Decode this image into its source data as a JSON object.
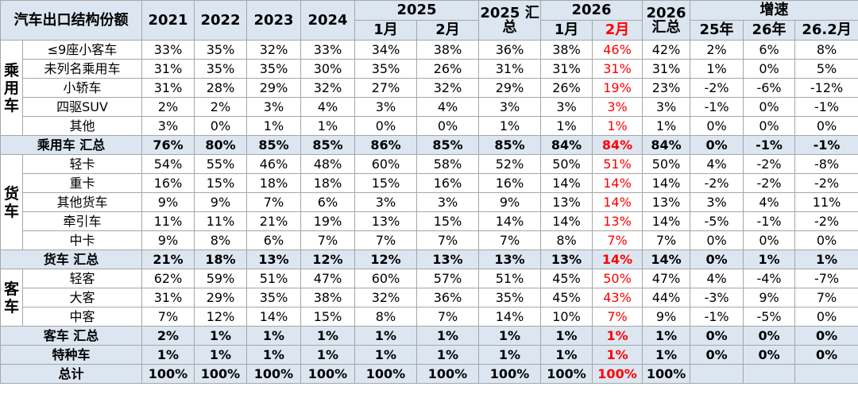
{
  "header": {
    "title": "汽车出口结构份额",
    "row1": [
      "2021",
      "2022",
      "2023",
      "2024",
      "2025",
      "2025 汇总",
      "2026",
      "2026 汇总",
      "增速"
    ],
    "row2": [
      "1月",
      "2月",
      "1月",
      "2月",
      "25年",
      "26年",
      "26.2月"
    ]
  },
  "groups": [
    {
      "label": "乘用车",
      "rows": [
        {
          "name": "≤9座小客车",
          "cells": [
            "33%",
            "35%",
            "32%",
            "33%",
            "34%",
            "38%",
            "36%",
            "38%",
            "46%",
            "42%",
            "2%",
            "6%",
            "8%"
          ]
        },
        {
          "name": "未列名乘用车",
          "cells": [
            "31%",
            "35%",
            "35%",
            "30%",
            "35%",
            "26%",
            "31%",
            "31%",
            "31%",
            "31%",
            "1%",
            "0%",
            "5%"
          ]
        },
        {
          "name": "小轿车",
          "cells": [
            "31%",
            "28%",
            "29%",
            "32%",
            "27%",
            "32%",
            "29%",
            "26%",
            "19%",
            "23%",
            "-2%",
            "-6%",
            "-12%"
          ]
        },
        {
          "name": "四驱SUV",
          "cells": [
            "2%",
            "2%",
            "3%",
            "4%",
            "3%",
            "4%",
            "3%",
            "3%",
            "3%",
            "3%",
            "-1%",
            "0%",
            "-1%"
          ]
        },
        {
          "name": "其他",
          "cells": [
            "3%",
            "0%",
            "1%",
            "1%",
            "0%",
            "0%",
            "1%",
            "1%",
            "1%",
            "1%",
            "0%",
            "0%",
            "0%"
          ]
        }
      ],
      "total": {
        "name": "乘用车 汇总",
        "cells": [
          "76%",
          "80%",
          "85%",
          "85%",
          "86%",
          "85%",
          "85%",
          "84%",
          "84%",
          "84%",
          "0%",
          "-1%",
          "-1%"
        ]
      }
    },
    {
      "label": "货车",
      "rows": [
        {
          "name": "轻卡",
          "cells": [
            "54%",
            "55%",
            "46%",
            "48%",
            "60%",
            "58%",
            "52%",
            "50%",
            "51%",
            "50%",
            "4%",
            "-2%",
            "-8%"
          ]
        },
        {
          "name": "重卡",
          "cells": [
            "16%",
            "15%",
            "18%",
            "18%",
            "15%",
            "16%",
            "16%",
            "14%",
            "14%",
            "14%",
            "-2%",
            "-2%",
            "-2%"
          ]
        },
        {
          "name": "其他货车",
          "cells": [
            "9%",
            "9%",
            "7%",
            "6%",
            "3%",
            "3%",
            "9%",
            "13%",
            "14%",
            "13%",
            "3%",
            "4%",
            "11%"
          ]
        },
        {
          "name": "牵引车",
          "cells": [
            "11%",
            "11%",
            "21%",
            "19%",
            "13%",
            "15%",
            "14%",
            "14%",
            "13%",
            "14%",
            "-5%",
            "-1%",
            "-2%"
          ]
        },
        {
          "name": "中卡",
          "cells": [
            "9%",
            "8%",
            "6%",
            "7%",
            "7%",
            "7%",
            "7%",
            "8%",
            "7%",
            "7%",
            "0%",
            "0%",
            "0%"
          ]
        }
      ],
      "total": {
        "name": "货车 汇总",
        "cells": [
          "21%",
          "18%",
          "13%",
          "12%",
          "12%",
          "13%",
          "13%",
          "13%",
          "14%",
          "14%",
          "0%",
          "1%",
          "1%"
        ]
      }
    },
    {
      "label": "客车",
      "rows": [
        {
          "name": "轻客",
          "cells": [
            "62%",
            "59%",
            "51%",
            "47%",
            "60%",
            "57%",
            "51%",
            "45%",
            "50%",
            "47%",
            "4%",
            "-4%",
            "-7%"
          ]
        },
        {
          "name": "大客",
          "cells": [
            "31%",
            "29%",
            "35%",
            "38%",
            "32%",
            "36%",
            "35%",
            "45%",
            "43%",
            "44%",
            "-3%",
            "9%",
            "7%"
          ]
        },
        {
          "name": "中客",
          "cells": [
            "7%",
            "12%",
            "14%",
            "15%",
            "8%",
            "7%",
            "14%",
            "10%",
            "7%",
            "9%",
            "-1%",
            "-5%",
            "0%"
          ]
        }
      ],
      "total": {
        "name": "客车 汇总",
        "cells": [
          "2%",
          "1%",
          "1%",
          "1%",
          "1%",
          "1%",
          "1%",
          "1%",
          "1%",
          "1%",
          "0%",
          "0%",
          "0%"
        ]
      }
    }
  ],
  "special": {
    "name": "特种车",
    "cells": [
      "1%",
      "1%",
      "1%",
      "1%",
      "1%",
      "1%",
      "1%",
      "1%",
      "1%",
      "1%",
      "0%",
      "0%",
      "0%"
    ]
  },
  "grand_total": {
    "name": "总计",
    "cells": [
      "100%",
      "100%",
      "100%",
      "100%",
      "100%",
      "100%",
      "100%",
      "100%",
      "100%",
      "100%"
    ]
  }
}
